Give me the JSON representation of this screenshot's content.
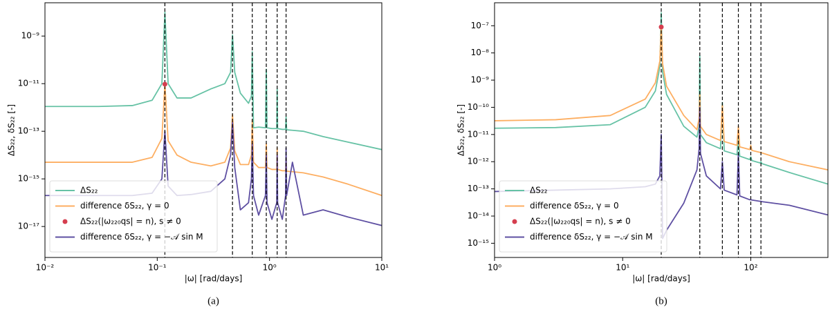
{
  "chart_data": [
    {
      "type": "line",
      "caption": "(a)",
      "x_label": "|ω| [rad/days]",
      "y_label": "ΔS₂₂, δS₂₂ [-]",
      "xscale": "log",
      "yscale": "log",
      "legend": "lower left",
      "xlim": [
        0.01,
        10
      ],
      "ylim": [
        5e-19,
        2.5e-08
      ],
      "xticks": [
        {
          "value": 0.01,
          "label": "10⁻²"
        },
        {
          "value": 0.1,
          "label": "10⁻¹"
        },
        {
          "value": 1,
          "label": "10⁰"
        },
        {
          "value": 10,
          "label": "10¹"
        }
      ],
      "yticks": [
        {
          "value": 1e-17,
          "label": "10⁻¹⁷"
        },
        {
          "value": 1e-15,
          "label": "10⁻¹⁵"
        },
        {
          "value": 1e-13,
          "label": "10⁻¹³"
        },
        {
          "value": 1e-11,
          "label": "10⁻¹¹"
        },
        {
          "value": 1e-09,
          "label": "10⁻⁹"
        }
      ],
      "vlines": [
        0.117,
        0.468,
        0.702,
        0.936,
        1.17,
        1.404
      ],
      "x": [
        0.01,
        0.03,
        0.06,
        0.09,
        0.11,
        0.117,
        0.125,
        0.15,
        0.2,
        0.3,
        0.4,
        0.45,
        0.468,
        0.49,
        0.55,
        0.65,
        0.69,
        0.702,
        0.72,
        0.8,
        0.92,
        0.936,
        0.95,
        1.05,
        1.16,
        1.17,
        1.18,
        1.3,
        1.39,
        1.404,
        1.42,
        1.6,
        2,
        3,
        5,
        10
      ],
      "series": [
        {
          "name": "ΔS₂₂",
          "color": "#66c2a5",
          "values": [
            1.1e-12,
            1.1e-12,
            1.2e-12,
            2e-12,
            1e-11,
            1e-08,
            1e-11,
            2.5e-12,
            2.5e-12,
            6e-12,
            1e-11,
            3e-11,
            1.1e-09,
            3e-11,
            4e-12,
            1.5e-12,
            3e-12,
            2.2e-10,
            1.4e-13,
            1.5e-13,
            1.4e-13,
            4e-11,
            1.4e-13,
            1.3e-13,
            1.3e-13,
            6e-12,
            1.3e-13,
            1.2e-13,
            1.2e-13,
            4e-13,
            1.15e-13,
            1.1e-13,
            1e-13,
            6e-14,
            3.5e-14,
            1.7e-14
          ]
        },
        {
          "name": "difference δS₂₂, γ = 0",
          "color": "#fdae61",
          "values": [
            5e-15,
            5e-15,
            5e-15,
            8e-15,
            5e-14,
            1e-11,
            4e-14,
            1e-14,
            5e-15,
            3.5e-15,
            5e-15,
            2e-14,
            5e-13,
            1.5e-14,
            4e-15,
            4e-15,
            1e-14,
            3e-13,
            5e-15,
            3e-15,
            3e-15,
            3e-14,
            3e-15,
            2.5e-15,
            2.5e-15,
            2e-14,
            2.5e-15,
            2.2e-15,
            2.2e-15,
            1e-14,
            2.1e-15,
            2e-15,
            1.8e-15,
            1.2e-15,
            6e-16,
            2e-16
          ]
        },
        {
          "name": "ΔS₂₂(|ω₂₂₀qs| = n), s ≠ 0",
          "color": "#d53e4f",
          "marker": "dot",
          "x": [
            0.117
          ],
          "values": [
            9.5e-12
          ]
        },
        {
          "name": "difference δS₂₂, γ = −𝒜 sin M",
          "color": "#5e4fa2",
          "values": [
            2e-16,
            2e-16,
            2e-16,
            2.5e-16,
            1e-15,
            1e-13,
            5e-16,
            2e-16,
            2.2e-16,
            3e-16,
            1e-15,
            1e-14,
            2.3e-13,
            3e-15,
            5e-17,
            1e-16,
            1e-15,
            3e-14,
            2e-16,
            3e-17,
            2e-16,
            1e-14,
            1e-16,
            2e-17,
            1e-16,
            1e-14,
            1e-16,
            2e-17,
            2e-16,
            2e-14,
            2e-16,
            5e-15,
            3e-17,
            5e-17,
            2.5e-17,
            1.1e-17
          ]
        }
      ]
    },
    {
      "type": "line",
      "caption": "(b)",
      "x_label": "|ω| [rad/days]",
      "y_label": "ΔS₂₂, δS₂₂ [-]",
      "xscale": "log",
      "yscale": "log",
      "legend": "lower left",
      "xlim": [
        1,
        400
      ],
      "ylim": [
        3e-16,
        7e-07
      ],
      "xticks": [
        {
          "value": 1,
          "label": "10⁰"
        },
        {
          "value": 10,
          "label": "10¹"
        },
        {
          "value": 100,
          "label": "10²"
        }
      ],
      "yticks": [
        {
          "value": 1e-15,
          "label": "10⁻¹⁵"
        },
        {
          "value": 1e-14,
          "label": "10⁻¹⁴"
        },
        {
          "value": 1e-13,
          "label": "10⁻¹³"
        },
        {
          "value": 1e-12,
          "label": "10⁻¹²"
        },
        {
          "value": 1e-11,
          "label": "10⁻¹¹"
        },
        {
          "value": 1e-10,
          "label": "10⁻¹⁰"
        },
        {
          "value": 1e-09,
          "label": "10⁻⁹"
        },
        {
          "value": 1e-08,
          "label": "10⁻⁸"
        },
        {
          "value": 1e-07,
          "label": "10⁻⁷"
        }
      ],
      "vlines": [
        20,
        40,
        60,
        80,
        100,
        120
      ],
      "x": [
        1,
        3,
        8,
        15,
        18,
        19.5,
        20,
        20.5,
        22,
        30,
        38,
        39.5,
        40,
        40.5,
        45,
        58,
        60,
        62,
        78,
        80,
        82,
        98,
        100,
        102,
        118,
        120,
        122,
        200,
        400
      ],
      "series": [
        {
          "name": "ΔS₂₂",
          "color": "#66c2a5",
          "values": [
            1.7e-11,
            1.8e-11,
            2.3e-11,
            1e-10,
            4e-10,
            3e-09,
            3e-07,
            2e-09,
            3e-10,
            2e-11,
            8e-12,
            2e-11,
            8e-09,
            1e-11,
            5e-12,
            3e-12,
            1.5e-10,
            2.5e-12,
            1.8e-12,
            8e-12,
            1.6e-12,
            1.2e-12,
            1.5e-12,
            1.1e-12,
            9e-13,
            1e-12,
            8.5e-13,
            4e-13,
            1.5e-13
          ]
        },
        {
          "name": "difference δS₂₂, γ = 0",
          "color": "#fdae61",
          "values": [
            3.2e-11,
            3.5e-11,
            5e-11,
            2e-10,
            8e-10,
            5e-09,
            1e-07,
            4e-09,
            6e-10,
            5e-11,
            1.5e-11,
            4e-11,
            3e-10,
            2e-11,
            1e-11,
            6e-12,
            1.2e-10,
            5.5e-12,
            4e-12,
            2e-11,
            3.5e-12,
            2.8e-12,
            4e-12,
            2.6e-12,
            2.2e-12,
            2.2e-12,
            2.1e-12,
            1e-12,
            5e-13
          ]
        },
        {
          "name": "ΔS₂₂(|ω₂₂₀qs| = n), s ≠ 0",
          "color": "#d53e4f",
          "marker": "dot",
          "x": [
            20
          ],
          "values": [
            9e-08
          ]
        },
        {
          "name": "difference δS₂₂, γ = −𝒜 sin M",
          "color": "#5e4fa2",
          "values": [
            8e-14,
            9e-14,
            1e-13,
            1.2e-13,
            1.5e-13,
            3e-13,
            1e-11,
            1.5e-15,
            3e-15,
            3e-14,
            5e-13,
            3e-12,
            1e-10,
            2e-12,
            3e-13,
            1e-13,
            1e-12,
            9e-14,
            6e-14,
            2e-12,
            5.5e-14,
            4e-14,
            4e-14,
            3.9e-14,
            3.5e-14,
            3.5e-14,
            3.4e-14,
            2.5e-14,
            1.1e-14
          ]
        }
      ]
    }
  ]
}
